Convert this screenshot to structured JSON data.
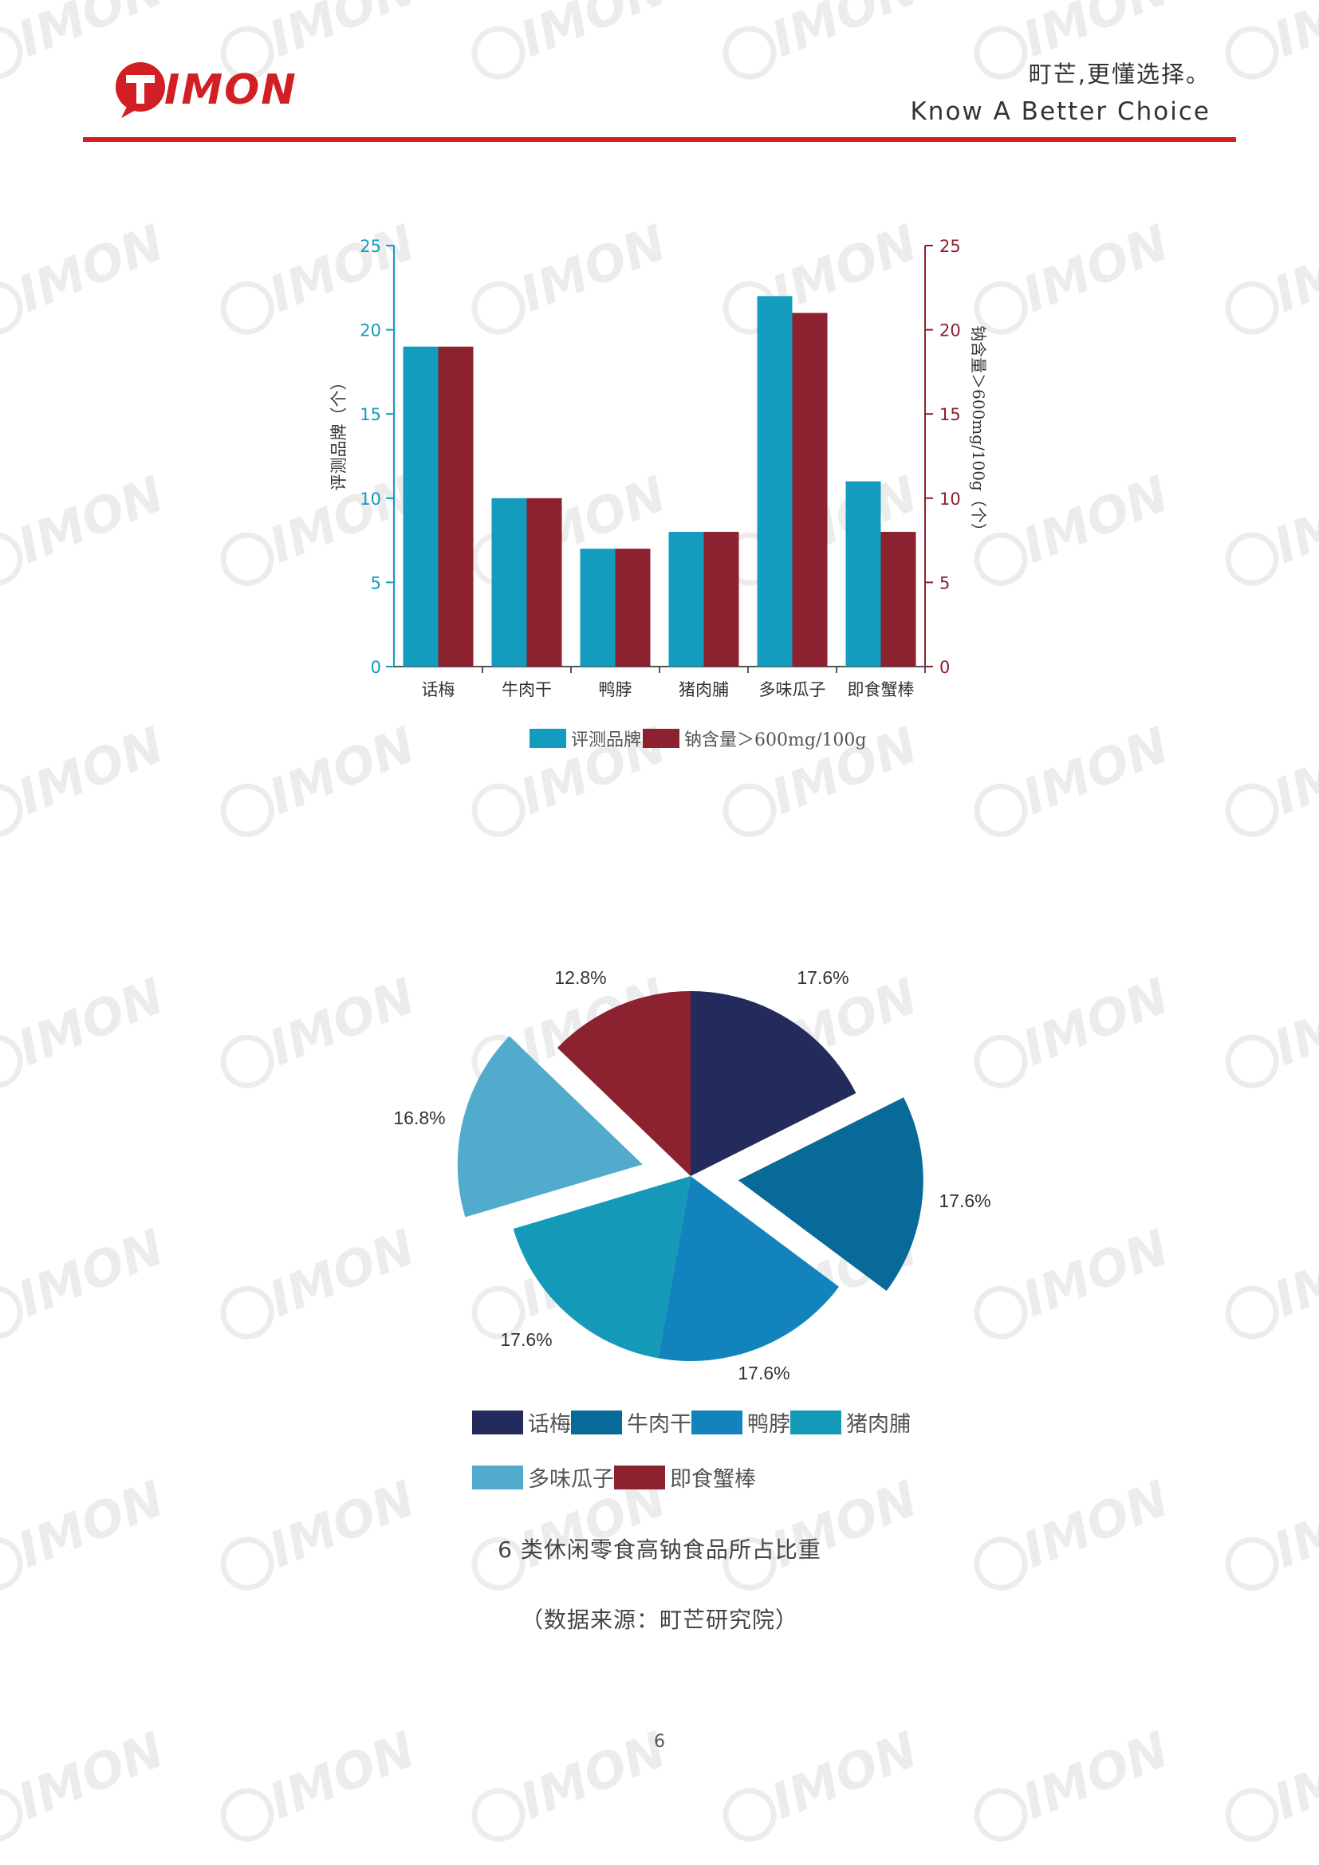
{
  "header": {
    "logo_text": "TIMON",
    "tagline_cn": "町芒,更懂选择。",
    "tagline_en": "Know A Better Choice"
  },
  "watermark_text": "TIMON",
  "colors": {
    "accent_red": "#d21f23",
    "series_brand": "#139cbd",
    "series_sodium": "#8c2230"
  },
  "chart_data": [
    {
      "type": "bar",
      "categories": [
        "话梅",
        "牛肉干",
        "鸭脖",
        "猪肉脯",
        "多味瓜子",
        "即食蟹棒"
      ],
      "series": [
        {
          "name": "评测品牌",
          "values": [
            19,
            10,
            7,
            8,
            22,
            11
          ]
        },
        {
          "name": "钠含量＞600mg/100g",
          "values": [
            19,
            10,
            7,
            8,
            21,
            8
          ]
        }
      ],
      "ylabel": "评测品牌（个）",
      "y2label": "钠含量＞600mg/100g（个）",
      "ylim": [
        0,
        25
      ],
      "yticks": [
        0,
        5,
        10,
        15,
        20,
        25
      ],
      "legend_position": "bottom"
    },
    {
      "type": "pie",
      "labels": [
        "话梅",
        "牛肉干",
        "鸭脖",
        "猪肉脯",
        "多味瓜子",
        "即食蟹棒"
      ],
      "values": [
        17.6,
        17.6,
        17.6,
        17.6,
        16.8,
        12.8
      ],
      "value_labels": [
        "17.6%",
        "17.6%",
        "17.6%",
        "17.6%",
        "16.8%",
        "12.8%"
      ],
      "colors": [
        "#222b5c",
        "#076a99",
        "#1383be",
        "#1599b8",
        "#52abcd",
        "#8c2230"
      ],
      "legend_position": "bottom"
    }
  ],
  "captions": {
    "title": "6 类休闲零食高钠食品所占比重",
    "source": "（数据来源：町芒研究院）"
  },
  "page_number": "6"
}
